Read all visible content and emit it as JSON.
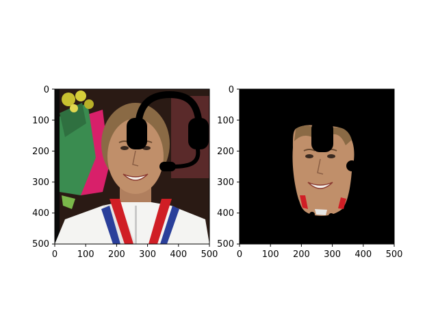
{
  "colors": {
    "background": "#ffffff",
    "axis": "#000000",
    "mask_background": "#000000",
    "headset": "#000000",
    "skin": "#c08f6a",
    "skin_shadow": "#a9775a",
    "hair": "#8a6a45",
    "jacket": "#f4f4f2",
    "ribbon_red": "#d01e25",
    "ribbon_blue": "#2a3f9a",
    "bouquet_green": "#3a8c50",
    "flower_yellow": "#c8c030",
    "backdrop_dark": "#2a1a14",
    "backdrop_magenta": "#d8206a"
  },
  "figure": {
    "panels": [
      {
        "name": "left",
        "content": "photo-with-headset-overlay",
        "icons": [
          "headset-icon"
        ],
        "x_ticks": [
          "0",
          "100",
          "200",
          "300",
          "400",
          "500"
        ],
        "y_ticks": [
          "0",
          "100",
          "200",
          "300",
          "400",
          "500"
        ]
      },
      {
        "name": "right",
        "content": "masked-face-on-black",
        "x_ticks": [
          "0",
          "100",
          "200",
          "300",
          "400",
          "500"
        ],
        "y_ticks": [
          "0",
          "100",
          "200",
          "300",
          "400",
          "500"
        ]
      }
    ],
    "x_range": [
      0,
      500
    ],
    "y_range": [
      0,
      500
    ],
    "y_inverted": true
  }
}
